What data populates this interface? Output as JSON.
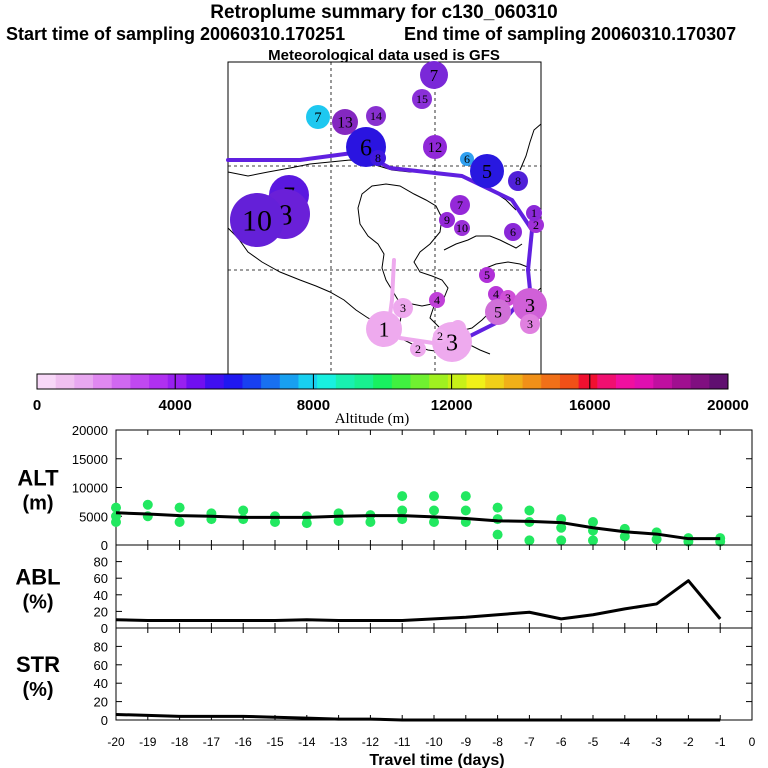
{
  "header": {
    "title": "Retroplume summary for c130_060310",
    "start_label": "Start time of sampling 20060310.170251",
    "end_label": "End time of sampling 20060310.170307",
    "met_label": "Meteorological data used is GFS"
  },
  "colors": {
    "trajectory": "#6020e0",
    "alt_points": "#22e860",
    "line": "#000000"
  },
  "map": {
    "labels": [
      {
        "text": "7",
        "color": "#7a28d8",
        "size": 14
      },
      {
        "text": "15",
        "color": "#8a30d8",
        "size": 10
      },
      {
        "text": "7",
        "color": "#1ec8f0",
        "size": 12
      },
      {
        "text": "13",
        "color": "#8428c0",
        "size": 13
      },
      {
        "text": "14",
        "color": "#8830d0",
        "size": 10
      },
      {
        "text": "6",
        "color": "#2a14e0",
        "size": 20
      },
      {
        "text": "12",
        "color": "#9028d8",
        "size": 12
      },
      {
        "text": "8",
        "color": "#4018e0",
        "size": 8
      },
      {
        "text": "6",
        "color": "#30a0f0",
        "size": 7
      },
      {
        "text": "5",
        "color": "#2818e0",
        "size": 17
      },
      {
        "text": "8",
        "color": "#5020d8",
        "size": 10
      },
      {
        "text": "7",
        "color": "#5a18e0",
        "size": 20
      },
      {
        "text": "8",
        "color": "#6a20d8",
        "size": 25
      },
      {
        "text": "10",
        "color": "#6420d8",
        "size": 27
      },
      {
        "text": "7",
        "color": "#9428d8",
        "size": 10
      },
      {
        "text": "9",
        "color": "#9428d8",
        "size": 8
      },
      {
        "text": "10",
        "color": "#9a30d8",
        "size": 8
      },
      {
        "text": "6",
        "color": "#8a28d8",
        "size": 9
      },
      {
        "text": "2",
        "color": "#a030d8",
        "size": 8
      },
      {
        "text": "1",
        "color": "#8a28d8",
        "size": 8
      },
      {
        "text": "5",
        "color": "#b030d8",
        "size": 8
      },
      {
        "text": "4",
        "color": "#b838d8",
        "size": 8
      },
      {
        "text": "4",
        "color": "#c040d8",
        "size": 8
      },
      {
        "text": "3",
        "color": "#d050d8",
        "size": 8
      },
      {
        "text": "3",
        "color": "#d060d8",
        "size": 17
      },
      {
        "text": "5",
        "color": "#d070d8",
        "size": 13
      },
      {
        "text": "3",
        "color": "#e080e0",
        "size": 10
      },
      {
        "text": "3",
        "color": "#eea8ee",
        "size": 10
      },
      {
        "text": "1",
        "color": "#eeaaee",
        "size": 18
      },
      {
        "text": "2",
        "color": "#eeaaee",
        "size": 8
      },
      {
        "text": "2",
        "color": "#eeaaee",
        "size": 8
      },
      {
        "text": "3",
        "color": "#eeaaee",
        "size": 20
      },
      {
        "text": "2",
        "color": "#f0b0f0",
        "size": 7
      }
    ]
  },
  "colorbar": {
    "colors": [
      "#f8d8f8",
      "#f0c0f0",
      "#e8a8f0",
      "#e088f0",
      "#d068f0",
      "#c048f0",
      "#b030f0",
      "#9820f0",
      "#7010f0",
      "#4010f0",
      "#2018f0",
      "#1840f0",
      "#1870f0",
      "#18a0f0",
      "#18d0f0",
      "#18f0e0",
      "#18f0b0",
      "#18f090",
      "#18f060",
      "#40f040",
      "#70f030",
      "#a0f020",
      "#c8f018",
      "#f0f018",
      "#f0d018",
      "#f0b018",
      "#f09018",
      "#f07018",
      "#f05018",
      "#f01030",
      "#f01070",
      "#f010a0",
      "#e010b0",
      "#c010a0",
      "#a01090",
      "#801080",
      "#601070"
    ],
    "tick_labels": [
      "0",
      "4000",
      "8000",
      "12000",
      "16000",
      "20000"
    ],
    "axis_label": "Altitude (m)"
  },
  "chart_data": [
    {
      "type": "line",
      "panel": "ALT",
      "ylabel": "ALT (m)",
      "title": "ALT",
      "unit": "(m)",
      "ylim": [
        0,
        20000
      ],
      "yticks": [
        0,
        5000,
        10000,
        15000,
        20000
      ],
      "xlim": [
        -20,
        0
      ],
      "x": [
        -20,
        -19,
        -18,
        -17,
        -16,
        -15,
        -14,
        -13,
        -12,
        -11,
        -10,
        -9,
        -8,
        -7,
        -6,
        -5,
        -4,
        -3,
        -2,
        -1
      ],
      "values": [
        5600,
        5400,
        5100,
        5000,
        4800,
        4800,
        4800,
        5000,
        5100,
        5100,
        4900,
        4600,
        4200,
        4100,
        3900,
        3000,
        2300,
        1900,
        1100,
        1100
      ],
      "scatter": [
        {
          "x": -20,
          "y": 5000
        },
        {
          "x": -20,
          "y": 4000
        },
        {
          "x": -20,
          "y": 6500
        },
        {
          "x": -19,
          "y": 7000
        },
        {
          "x": -19,
          "y": 5000
        },
        {
          "x": -18,
          "y": 6500
        },
        {
          "x": -18,
          "y": 4000
        },
        {
          "x": -17,
          "y": 5500
        },
        {
          "x": -17,
          "y": 4500
        },
        {
          "x": -16,
          "y": 6000
        },
        {
          "x": -16,
          "y": 4500
        },
        {
          "x": -15,
          "y": 5000
        },
        {
          "x": -15,
          "y": 4000
        },
        {
          "x": -14,
          "y": 5000
        },
        {
          "x": -14,
          "y": 3800
        },
        {
          "x": -13,
          "y": 5500
        },
        {
          "x": -13,
          "y": 4200
        },
        {
          "x": -12,
          "y": 5200
        },
        {
          "x": -12,
          "y": 4000
        },
        {
          "x": -11,
          "y": 8500
        },
        {
          "x": -11,
          "y": 6000
        },
        {
          "x": -11,
          "y": 4500
        },
        {
          "x": -10,
          "y": 8500
        },
        {
          "x": -10,
          "y": 6000
        },
        {
          "x": -10,
          "y": 4000
        },
        {
          "x": -9,
          "y": 8500
        },
        {
          "x": -9,
          "y": 6000
        },
        {
          "x": -9,
          "y": 4000
        },
        {
          "x": -8,
          "y": 6500
        },
        {
          "x": -8,
          "y": 4500
        },
        {
          "x": -8,
          "y": 1800
        },
        {
          "x": -7,
          "y": 6000
        },
        {
          "x": -7,
          "y": 4000
        },
        {
          "x": -7,
          "y": 800
        },
        {
          "x": -6,
          "y": 4500
        },
        {
          "x": -6,
          "y": 3000
        },
        {
          "x": -6,
          "y": 800
        },
        {
          "x": -5,
          "y": 4000
        },
        {
          "x": -5,
          "y": 2500
        },
        {
          "x": -5,
          "y": 800
        },
        {
          "x": -4,
          "y": 2800
        },
        {
          "x": -4,
          "y": 1500
        },
        {
          "x": -3,
          "y": 2200
        },
        {
          "x": -3,
          "y": 1000
        },
        {
          "x": -2,
          "y": 1200
        },
        {
          "x": -2,
          "y": 600
        },
        {
          "x": -1,
          "y": 1200
        },
        {
          "x": -1,
          "y": 600
        }
      ]
    },
    {
      "type": "line",
      "panel": "ABL",
      "title": "ABL",
      "unit": "(%)",
      "ylabel": "ABL (%)",
      "ylim": [
        0,
        100
      ],
      "yticks": [
        0,
        20,
        40,
        60,
        80
      ],
      "xlim": [
        -20,
        0
      ],
      "x": [
        -20,
        -19,
        -18,
        -17,
        -16,
        -15,
        -14,
        -13,
        -12,
        -11,
        -10,
        -9,
        -8,
        -7,
        -6,
        -5,
        -4,
        -3,
        -2,
        -1
      ],
      "values": [
        10,
        9,
        9,
        9,
        9,
        9,
        10,
        9,
        9,
        9,
        11,
        13,
        16,
        19,
        11,
        16,
        23,
        29,
        57,
        11
      ]
    },
    {
      "type": "line",
      "panel": "STR",
      "title": "STR",
      "unit": "(%)",
      "ylabel": "STR (%)",
      "ylim": [
        0,
        100
      ],
      "yticks": [
        0,
        20,
        40,
        60,
        80
      ],
      "xlim": [
        -20,
        0
      ],
      "x": [
        -20,
        -19,
        -18,
        -17,
        -16,
        -15,
        -14,
        -13,
        -12,
        -11,
        -10,
        -9,
        -8,
        -7,
        -6,
        -5,
        -4,
        -3,
        -2,
        -1
      ],
      "values": [
        6,
        5,
        4,
        4,
        4,
        3,
        2,
        1,
        1,
        0,
        0,
        0,
        0,
        0,
        0,
        0,
        0,
        0,
        0,
        0
      ]
    }
  ],
  "x_axis": {
    "tick_labels": [
      "-20",
      "-19",
      "-18",
      "-17",
      "-16",
      "-15",
      "-14",
      "-13",
      "-12",
      "-11",
      "-10",
      "-9",
      "-8",
      "-7",
      "-6",
      "-5",
      "-4",
      "-3",
      "-2",
      "-1",
      "0"
    ],
    "label": "Travel time (days)"
  }
}
